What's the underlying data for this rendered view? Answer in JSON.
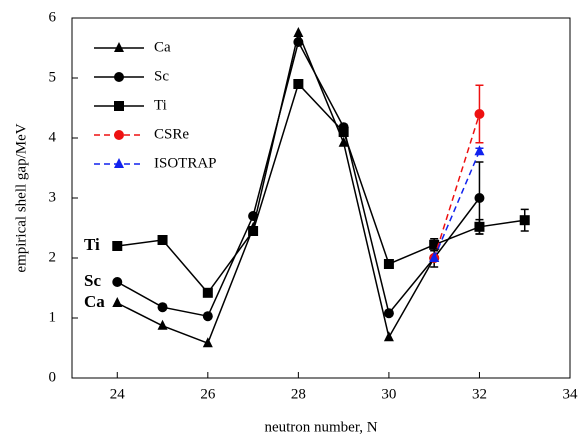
{
  "chart_data": {
    "type": "line",
    "x_label": "neutron number, N",
    "y_label": "empirical shell gap/MeV",
    "xlim": [
      23,
      34
    ],
    "xticks": [
      24,
      26,
      28,
      30,
      32,
      34
    ],
    "ylim": [
      0,
      6
    ],
    "yticks": [
      0,
      1,
      2,
      3,
      4,
      5,
      6
    ],
    "legend": "upper left",
    "annotations": [
      {
        "text": "Ti",
        "x": 23,
        "y": 2.2
      },
      {
        "text": "Sc",
        "x": 23,
        "y": 1.6
      },
      {
        "text": "Ca",
        "x": 23,
        "y": 1.25
      }
    ],
    "series": [
      {
        "name": "Ca",
        "color": "#000000",
        "marker": "triangle",
        "dashed": false,
        "x": [
          24,
          25,
          26,
          27,
          28,
          29,
          30,
          31
        ],
        "values": [
          1.25,
          0.87,
          0.58,
          2.5,
          5.75,
          3.92,
          0.68,
          2.0
        ],
        "errors": [
          null,
          null,
          null,
          null,
          null,
          null,
          null,
          0.15
        ]
      },
      {
        "name": "Sc",
        "color": "#000000",
        "marker": "circle",
        "dashed": false,
        "x": [
          24,
          25,
          26,
          27,
          28,
          29,
          30,
          31,
          32
        ],
        "values": [
          1.6,
          1.18,
          1.03,
          2.7,
          5.6,
          4.18,
          1.08,
          2.0,
          3.0
        ],
        "errors": [
          null,
          null,
          null,
          null,
          null,
          null,
          null,
          null,
          0.6
        ]
      },
      {
        "name": "Ti",
        "color": "#000000",
        "marker": "square",
        "dashed": false,
        "x": [
          24,
          25,
          26,
          27,
          28,
          29,
          30,
          31,
          32,
          33
        ],
        "values": [
          2.2,
          2.3,
          1.42,
          2.45,
          4.9,
          4.1,
          1.9,
          2.22,
          2.52,
          2.63
        ],
        "errors": [
          null,
          null,
          null,
          null,
          null,
          null,
          null,
          0.1,
          0.12,
          0.18
        ]
      },
      {
        "name": "CSRe",
        "color": "#ee1111",
        "marker": "circle",
        "dashed": true,
        "x": [
          31,
          32
        ],
        "values": [
          2.0,
          4.4
        ],
        "errors": [
          null,
          0.48
        ]
      },
      {
        "name": "ISOTRAP",
        "color": "#1122ee",
        "marker": "triangle",
        "dashed": true,
        "x": [
          31,
          32
        ],
        "values": [
          2.0,
          3.78
        ],
        "errors": [
          null,
          0.05
        ]
      }
    ]
  }
}
